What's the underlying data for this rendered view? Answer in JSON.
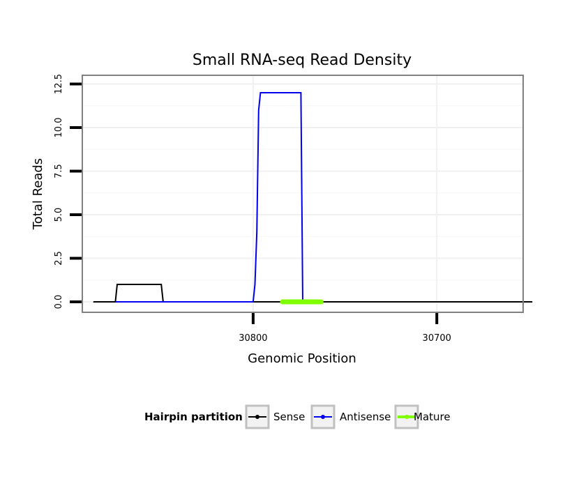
{
  "chart_data": {
    "type": "line",
    "title": "Small RNA-seq Read Density",
    "xlabel": "Genomic Position",
    "ylabel": "Total Reads",
    "x_reversed": true,
    "xlim": [
      30893,
      30653
    ],
    "ylim": [
      -0.6,
      13.0
    ],
    "x_ticks": [
      30800,
      30700
    ],
    "x_tick_labels": [
      "30800",
      "30700"
    ],
    "y_ticks": [
      0,
      2.5,
      5,
      7.5,
      10,
      12.5
    ],
    "y_tick_labels": [
      "0.0",
      "2.5",
      "5.0",
      "7.5",
      "10.0",
      "12.5"
    ],
    "grid": true,
    "legend": {
      "title": "Hairpin partition",
      "placement": "bottom",
      "entries": [
        "Sense",
        "Antisense",
        "Mature"
      ]
    },
    "series": [
      {
        "name": "Sense",
        "color": "#000000",
        "x": [
          30887,
          30875,
          30874,
          30850,
          30849,
          30648
        ],
        "y": [
          0,
          0,
          1,
          1,
          0,
          0
        ]
      },
      {
        "name": "Antisense",
        "color": "#0000ee",
        "x": [
          30875,
          30800,
          30799,
          30798,
          30797,
          30796,
          30795,
          30774,
          30773
        ],
        "y": [
          0,
          0,
          1,
          4,
          11,
          12,
          12,
          12,
          0
        ]
      },
      {
        "name": "Mature",
        "color": "#7fff00",
        "x": [
          30784,
          30763
        ],
        "y": [
          0,
          0
        ]
      }
    ]
  }
}
